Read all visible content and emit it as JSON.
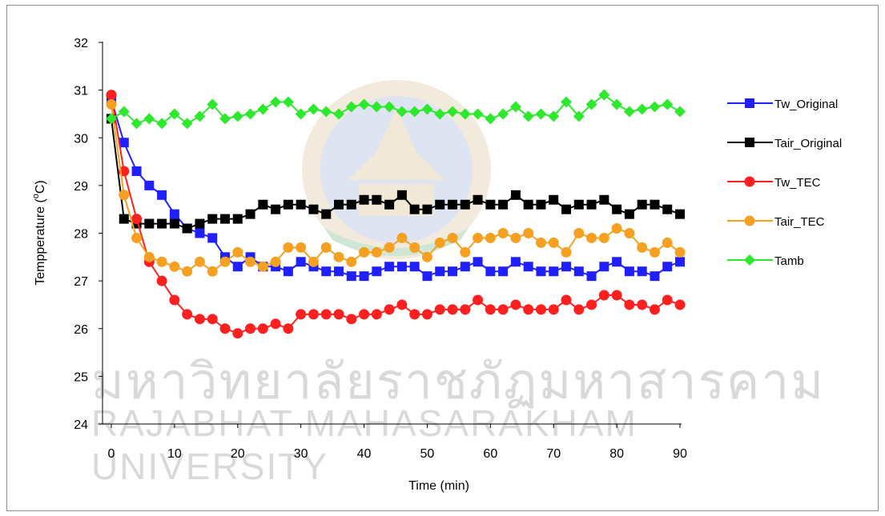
{
  "chart_data": {
    "type": "line",
    "title": "",
    "xlabel": "Time (min)",
    "ylabel": "Tempperature (°C)",
    "ylabel_parts": {
      "before": "Tempperature (",
      "sup": "o",
      "after": "C)"
    },
    "xlim": [
      0,
      90
    ],
    "ylim": [
      24,
      32
    ],
    "xticks": [
      0,
      10,
      20,
      30,
      40,
      50,
      60,
      70,
      80,
      90
    ],
    "yticks": [
      24,
      25,
      26,
      27,
      28,
      29,
      30,
      31,
      32
    ],
    "grid": false,
    "legend_position": "right",
    "x": [
      0,
      2,
      4,
      6,
      8,
      10,
      12,
      14,
      16,
      18,
      20,
      22,
      24,
      26,
      28,
      30,
      32,
      34,
      36,
      38,
      40,
      42,
      44,
      46,
      48,
      50,
      52,
      54,
      56,
      58,
      60,
      62,
      64,
      66,
      68,
      70,
      72,
      74,
      76,
      78,
      80,
      82,
      84,
      86,
      88,
      90
    ],
    "series": [
      {
        "name": "Tw_Original",
        "color": "#1f1fff",
        "marker": "square",
        "values": [
          30.8,
          29.9,
          29.3,
          29.0,
          28.8,
          28.4,
          28.1,
          28.0,
          27.9,
          27.5,
          27.3,
          27.5,
          27.3,
          27.3,
          27.2,
          27.4,
          27.3,
          27.2,
          27.2,
          27.1,
          27.1,
          27.2,
          27.3,
          27.3,
          27.3,
          27.1,
          27.2,
          27.2,
          27.3,
          27.4,
          27.2,
          27.2,
          27.4,
          27.3,
          27.2,
          27.2,
          27.3,
          27.2,
          27.1,
          27.3,
          27.4,
          27.2,
          27.2,
          27.1,
          27.3,
          27.4
        ]
      },
      {
        "name": "Tair_Original",
        "color": "#000000",
        "marker": "square",
        "values": [
          30.4,
          28.3,
          28.2,
          28.2,
          28.2,
          28.2,
          28.1,
          28.2,
          28.3,
          28.3,
          28.3,
          28.4,
          28.6,
          28.5,
          28.6,
          28.6,
          28.5,
          28.4,
          28.6,
          28.6,
          28.7,
          28.7,
          28.6,
          28.8,
          28.5,
          28.5,
          28.6,
          28.6,
          28.6,
          28.7,
          28.6,
          28.6,
          28.8,
          28.6,
          28.6,
          28.7,
          28.5,
          28.6,
          28.6,
          28.7,
          28.5,
          28.4,
          28.6,
          28.6,
          28.5,
          28.4
        ]
      },
      {
        "name": "Tw_TEC",
        "color": "#ff1f1f",
        "marker": "circle",
        "values": [
          30.9,
          29.3,
          28.3,
          27.4,
          27.0,
          26.6,
          26.3,
          26.2,
          26.2,
          26.0,
          25.9,
          26.0,
          26.0,
          26.1,
          26.0,
          26.3,
          26.3,
          26.3,
          26.3,
          26.2,
          26.3,
          26.3,
          26.4,
          26.5,
          26.3,
          26.3,
          26.4,
          26.4,
          26.4,
          26.6,
          26.4,
          26.4,
          26.5,
          26.4,
          26.4,
          26.4,
          26.6,
          26.4,
          26.5,
          26.7,
          26.7,
          26.5,
          26.5,
          26.4,
          26.6,
          26.5
        ]
      },
      {
        "name": "Tair_TEC",
        "color": "#f5a020",
        "marker": "circle",
        "values": [
          30.7,
          28.8,
          27.9,
          27.5,
          27.4,
          27.3,
          27.2,
          27.4,
          27.2,
          27.4,
          27.6,
          27.4,
          27.3,
          27.4,
          27.7,
          27.7,
          27.4,
          27.7,
          27.5,
          27.4,
          27.6,
          27.6,
          27.7,
          27.9,
          27.7,
          27.5,
          27.8,
          27.9,
          27.6,
          27.9,
          27.9,
          28.0,
          27.9,
          28.0,
          27.8,
          27.8,
          27.6,
          28.0,
          27.9,
          27.9,
          28.1,
          28.0,
          27.7,
          27.6,
          27.8,
          27.6
        ]
      },
      {
        "name": "Tamb",
        "color": "#2ee82e",
        "marker": "diamond",
        "values": [
          30.4,
          30.55,
          30.3,
          30.4,
          30.3,
          30.5,
          30.3,
          30.45,
          30.7,
          30.4,
          30.45,
          30.5,
          30.6,
          30.75,
          30.75,
          30.5,
          30.6,
          30.55,
          30.5,
          30.65,
          30.7,
          30.65,
          30.65,
          30.55,
          30.55,
          30.6,
          30.5,
          30.55,
          30.5,
          30.5,
          30.4,
          30.5,
          30.65,
          30.45,
          30.5,
          30.45,
          30.75,
          30.45,
          30.7,
          30.9,
          30.7,
          30.55,
          30.6,
          30.65,
          30.7,
          30.55
        ]
      }
    ]
  },
  "watermark": {
    "line1": "มหาวิทยาลัยราชภัฏมหาสารคาม",
    "line2": "RAJABHAT MAHASARAKHAM UNIVERSITY"
  }
}
